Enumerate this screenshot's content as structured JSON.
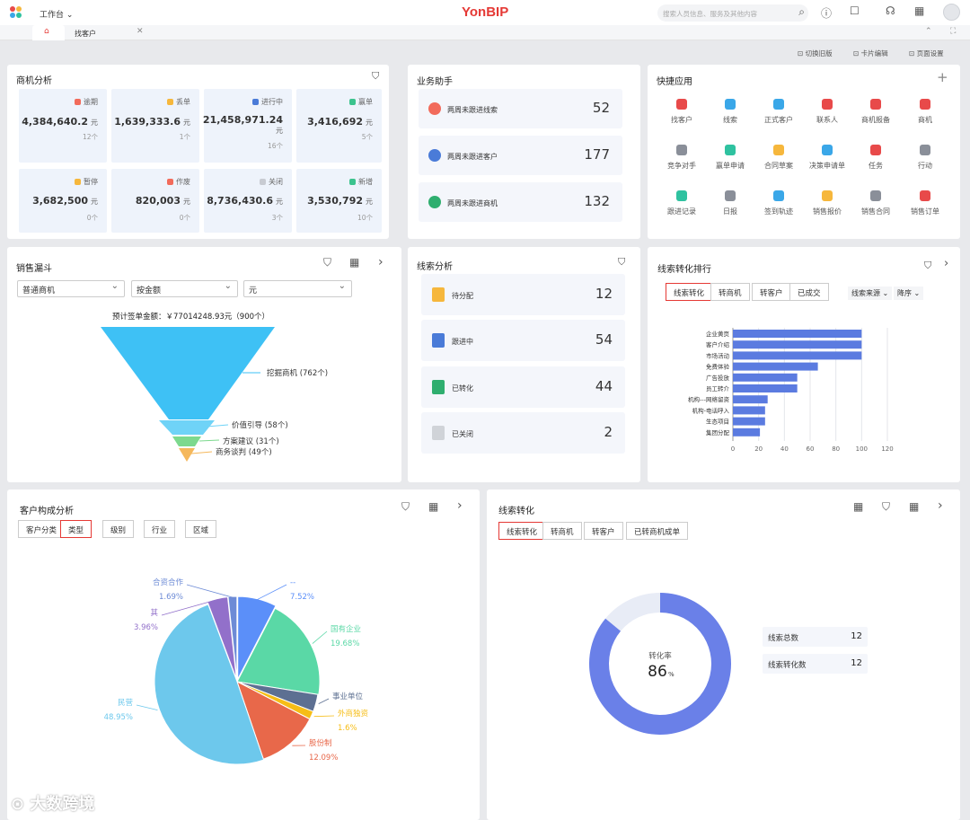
{
  "topbar": {
    "workspace": "工作台",
    "brand": "YonBIP",
    "search_placeholder": "搜索人员信息、服务及其他内容"
  },
  "tabs": {
    "active": "找客户"
  },
  "subbar": {
    "switch_old": "切换旧版",
    "card_edit": "卡片编辑",
    "page_settings": "页面设置"
  },
  "opp": {
    "title": "商机分析",
    "tiles": [
      {
        "label": "逾期",
        "value": "4,384,640.2",
        "unit": "元",
        "count": "12个",
        "color": "#f26b5b"
      },
      {
        "label": "丢单",
        "value": "1,639,333.6",
        "unit": "元",
        "count": "1个",
        "color": "#f6b73c"
      },
      {
        "label": "进行中",
        "value": "21,458,971.24",
        "unit": "元",
        "count": "16个",
        "color": "#4a7bd8"
      },
      {
        "label": "赢单",
        "value": "3,416,692",
        "unit": "元",
        "count": "5个",
        "color": "#3cc38e"
      },
      {
        "label": "暂停",
        "value": "3,682,500",
        "unit": "元",
        "count": "0个",
        "color": "#f6b73c"
      },
      {
        "label": "作废",
        "value": "820,003",
        "unit": "元",
        "count": "0个",
        "color": "#f26b5b"
      },
      {
        "label": "关闭",
        "value": "8,736,430.6",
        "unit": "元",
        "count": "3个",
        "color": "#c8cbd2"
      },
      {
        "label": "新增",
        "value": "3,530,792",
        "unit": "元",
        "count": "10个",
        "color": "#3cc38e"
      }
    ]
  },
  "assistant": {
    "title": "业务助手",
    "rows": [
      {
        "label": "两周未跟进线索",
        "value": "52",
        "color": "#f26b5b"
      },
      {
        "label": "两周未跟进客户",
        "value": "177",
        "color": "#4a7bd8"
      },
      {
        "label": "两周未跟进商机",
        "value": "132",
        "color": "#2fae6f"
      }
    ]
  },
  "quick": {
    "title": "快捷应用",
    "items": [
      {
        "label": "找客户",
        "color": "#e84a4a"
      },
      {
        "label": "线索",
        "color": "#3aa7e8"
      },
      {
        "label": "正式客户",
        "color": "#3aa7e8"
      },
      {
        "label": "联系人",
        "color": "#e84a4a"
      },
      {
        "label": "商机报备",
        "color": "#e84a4a"
      },
      {
        "label": "商机",
        "color": "#e84a4a"
      },
      {
        "label": "竞争对手",
        "color": "#8a8f99"
      },
      {
        "label": "赢单申请",
        "color": "#2fc2a0"
      },
      {
        "label": "合同草案",
        "color": "#f6b73c"
      },
      {
        "label": "决策申请单",
        "color": "#3aa7e8"
      },
      {
        "label": "任务",
        "color": "#e84a4a"
      },
      {
        "label": "行动",
        "color": "#8a8f99"
      },
      {
        "label": "跟进记录",
        "color": "#2fc2a0"
      },
      {
        "label": "日报",
        "color": "#8a8f99"
      },
      {
        "label": "签到轨迹",
        "color": "#3aa7e8"
      },
      {
        "label": "销售报价",
        "color": "#f6b73c"
      },
      {
        "label": "销售合同",
        "color": "#8a8f99"
      },
      {
        "label": "销售订单",
        "color": "#e84a4a"
      }
    ]
  },
  "funnel": {
    "title": "销售漏斗",
    "sel1": "普通商机",
    "sel2": "按金额",
    "sel3": "元",
    "summary": "预计签单金额：￥77014248.93元（900个）",
    "stages": [
      {
        "label": "挖掘商机 (762个)"
      },
      {
        "label": "价值引导 (58个)"
      },
      {
        "label": "方案建议 (31个)"
      },
      {
        "label": "商务谈判 (49个)"
      }
    ]
  },
  "leads": {
    "title": "线索分析",
    "rows": [
      {
        "label": "待分配",
        "value": "12",
        "color": "#f6b73c"
      },
      {
        "label": "跟进中",
        "value": "54",
        "color": "#4a7bd8"
      },
      {
        "label": "已转化",
        "value": "44",
        "color": "#2fae6f"
      },
      {
        "label": "已关闭",
        "value": "2",
        "color": "#d0d3d8"
      }
    ]
  },
  "ranking": {
    "title": "线索转化排行",
    "tabs": [
      "线索转化",
      "转商机",
      "转客户",
      "已成交"
    ],
    "filter1": "线索来源",
    "filter2": "降序"
  },
  "chart_data": [
    {
      "type": "bar",
      "orientation": "horizontal",
      "categories": [
        "企业黄页",
        "客户介绍",
        "市场活动",
        "免费体验",
        "广告投放",
        "员工转介",
        "机构---网络留资",
        "机构-电话呼入",
        "生态项目",
        "集团分配"
      ],
      "values": [
        100,
        100,
        100,
        66,
        50,
        50,
        27,
        25,
        25,
        21
      ],
      "xlim": [
        0,
        120
      ],
      "xticks": [
        "0",
        "20",
        "40",
        "60",
        "80",
        "100",
        "120"
      ],
      "color": "#5b7be0"
    },
    {
      "type": "pie",
      "slices": [
        {
          "name": "--",
          "pct": "7.52%",
          "value": 7.52,
          "color": "#5b8ff9"
        },
        {
          "name": "国有企业",
          "pct": "19.68%",
          "value": 19.68,
          "color": "#5ad8a6"
        },
        {
          "name": "事业单位",
          "pct": "",
          "value": 3.4,
          "color": "#5d7092"
        },
        {
          "name": "外商独资",
          "pct": "1.6%",
          "value": 1.6,
          "color": "#f6bd16"
        },
        {
          "name": "股份制",
          "pct": "12.09%",
          "value": 12.09,
          "color": "#e8684a"
        },
        {
          "name": "民营",
          "pct": "48.95%",
          "value": 48.95,
          "color": "#6dc8ec"
        },
        {
          "name": "其",
          "pct": "3.96%",
          "value": 3.96,
          "color": "#9270ca"
        },
        {
          "name": "合资合作",
          "pct": "1.69%",
          "value": 1.69,
          "color": "#6d8bd6"
        }
      ]
    },
    {
      "type": "donut",
      "label": "转化率",
      "value": "86",
      "unit": "%",
      "fraction": 0.86,
      "colors": [
        "#6a80e8",
        "#e8ecf6"
      ]
    }
  ],
  "customer": {
    "title": "客户构成分析",
    "tabs": [
      "客户分类",
      "类型",
      "级别",
      "行业",
      "区域"
    ]
  },
  "conversion": {
    "title": "线索转化",
    "tabs": [
      "线索转化",
      "转商机",
      "转客户",
      "已转商机成单"
    ],
    "stats": [
      {
        "label": "线索总数",
        "value": "12"
      },
      {
        "label": "线索转化数",
        "value": "12"
      }
    ]
  },
  "watermark": "大数跨境"
}
